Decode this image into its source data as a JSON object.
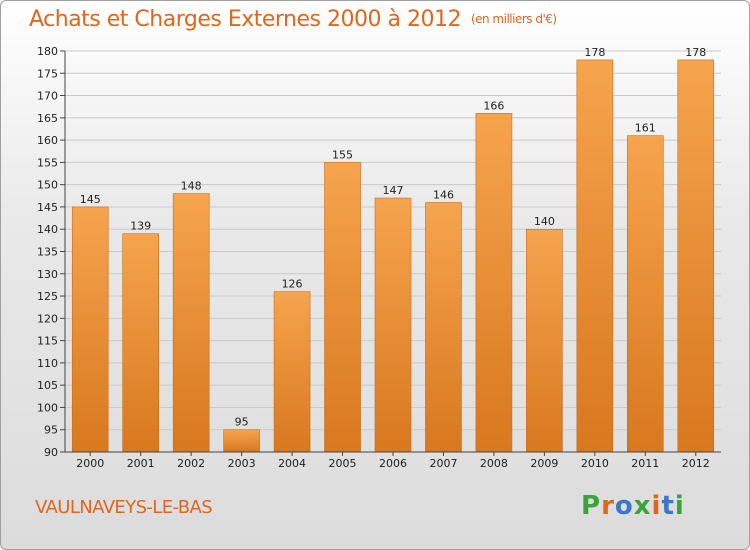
{
  "header": {
    "title": "Achats et Charges Externes 2000 à 2012",
    "unit": "(en milliers d'€)"
  },
  "footer": {
    "commune": "VAULNAVEYS-LE-BAS",
    "logo": "Proxiti"
  },
  "colors": {
    "title": "#e0661e",
    "bar_light": "#f6a44e",
    "bar_dark": "#d8781f",
    "logo_letters": [
      "#3aa33a",
      "#e0661e",
      "#3a77c9",
      "#3aa33a",
      "#e0661e",
      "#3a77c9",
      "#3aa33a"
    ]
  },
  "chart_data": {
    "type": "bar",
    "categories": [
      "2000",
      "2001",
      "2002",
      "2003",
      "2004",
      "2005",
      "2006",
      "2007",
      "2008",
      "2009",
      "2010",
      "2011",
      "2012"
    ],
    "values": [
      145,
      139,
      148,
      95,
      126,
      155,
      147,
      146,
      166,
      140,
      178,
      161,
      178
    ],
    "ylim": [
      90,
      180
    ],
    "yticks": [
      90,
      95,
      100,
      105,
      110,
      115,
      120,
      125,
      130,
      135,
      140,
      145,
      150,
      155,
      160,
      165,
      170,
      175,
      180
    ],
    "grid": true,
    "title": "Achats et Charges Externes 2000 à 2012",
    "xlabel": "",
    "ylabel": ""
  }
}
